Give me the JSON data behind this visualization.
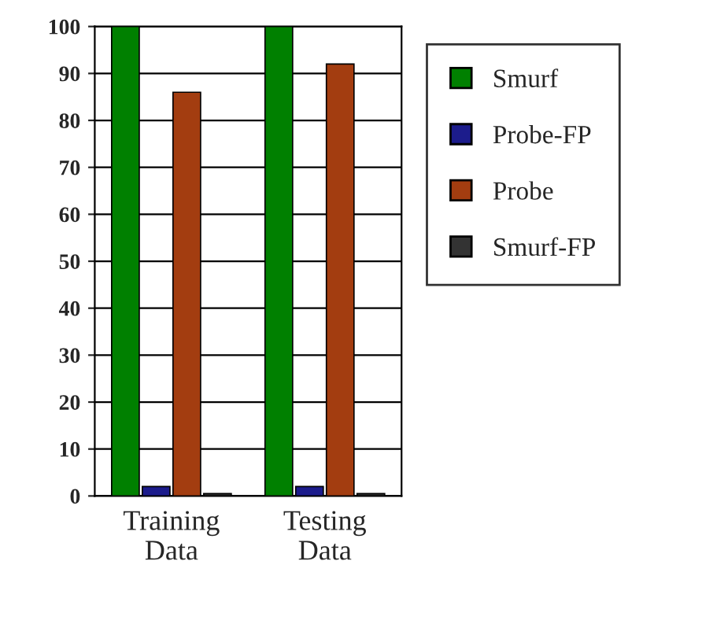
{
  "chart_data": {
    "type": "bar",
    "categories": [
      "Training Data",
      "Testing Data"
    ],
    "series": [
      {
        "name": "Smurf",
        "color": "#008000",
        "values": [
          100,
          100
        ]
      },
      {
        "name": "Probe-FP",
        "color": "#1c1c8c",
        "values": [
          2,
          2
        ]
      },
      {
        "name": "Probe",
        "color": "#a33d10",
        "values": [
          86,
          92
        ]
      },
      {
        "name": "Smurf-FP",
        "color": "#333333",
        "values": [
          0.5,
          0.5
        ]
      }
    ],
    "ylim": [
      0,
      100
    ],
    "yticks": [
      0,
      10,
      20,
      30,
      40,
      50,
      60,
      70,
      80,
      90,
      100
    ],
    "grid": "y",
    "legend": "right"
  }
}
